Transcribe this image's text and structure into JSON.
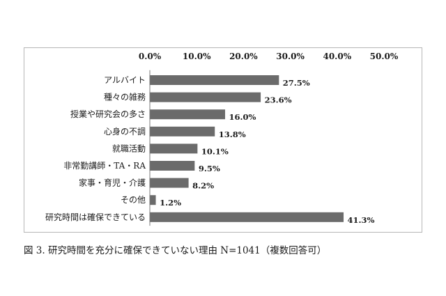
{
  "caption": "図 3. 研究時間を充分に確保できていない理由 N=1041（複数回答可）",
  "chart_data": {
    "type": "bar",
    "orientation": "horizontal",
    "title": "",
    "xlabel": "",
    "ylabel": "",
    "xlim": [
      0,
      50
    ],
    "tick_values": [
      0,
      10,
      20,
      30,
      40,
      50
    ],
    "tick_labels": [
      "0.0%",
      "10.0%",
      "20.0%",
      "30.0%",
      "40.0%",
      "50.0%"
    ],
    "axis_position": "top",
    "grid": false,
    "legend": "none",
    "bar_color": "#6b6b6b",
    "categories": [
      "アルバイト",
      "種々の雑務",
      "授業や研究会の多さ",
      "心身の不調",
      "就職活動",
      "非常勤講師・TA・RA",
      "家事・育児・介護",
      "その他",
      "研究時間は確保できている"
    ],
    "values": [
      27.5,
      23.6,
      16.0,
      13.8,
      10.1,
      9.5,
      8.2,
      1.2,
      41.3
    ],
    "value_labels": [
      "27.5%",
      "23.6%",
      "16.0%",
      "13.8%",
      "10.1%",
      "9.5%",
      "8.2%",
      "1.2%",
      "41.3%"
    ]
  }
}
